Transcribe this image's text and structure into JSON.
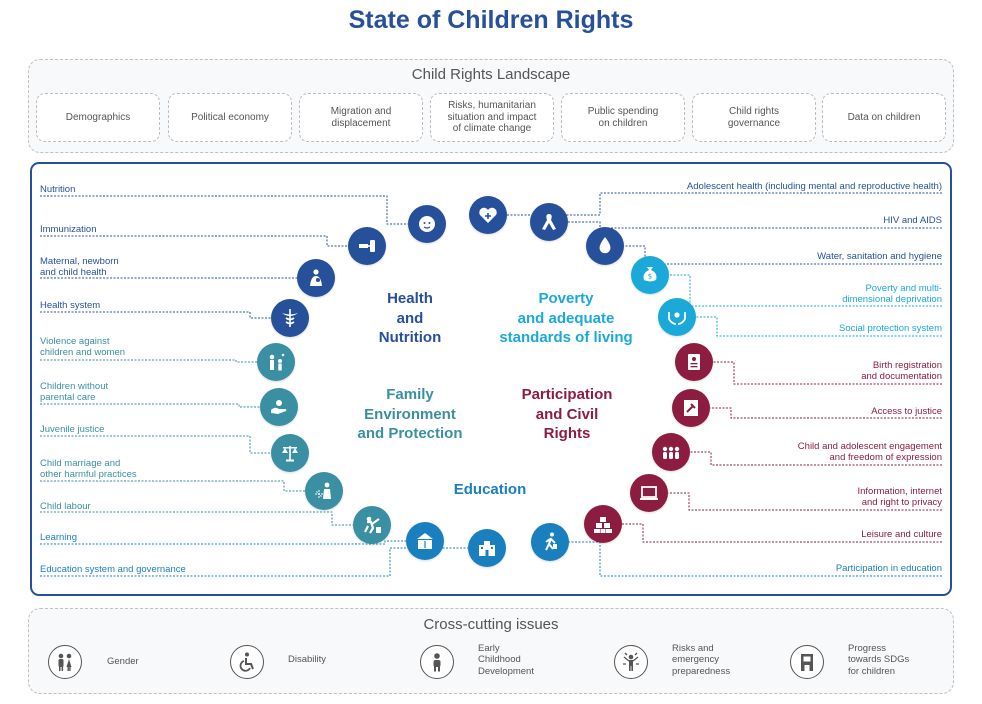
{
  "title": "State of Children Rights",
  "colors": {
    "health": "#27509b",
    "poverty": "#1aa9d8",
    "participation": "#8c1d40",
    "family": "#3a8fa3",
    "education": "#1a7fbf"
  },
  "landscape": {
    "title": "Child Rights Landscape",
    "items": [
      "Demographics",
      "Political economy",
      "Migration and\ndisplacement",
      "Risks, humanitarian\nsituation and impact\nof climate change",
      "Public spending\non children",
      "Child rights\ngovernance",
      "Data on children"
    ]
  },
  "sections": {
    "health": "Health\nand\nNutrition",
    "poverty": "Poverty\nand adequate\nstandards of living",
    "family": "Family\nEnvironment\nand Protection",
    "participation": "Participation\nand Civil\nRights",
    "education": "Education"
  },
  "left_labels": [
    "Nutrition",
    "Immunization",
    "Maternal, newborn\nand child health",
    "Health system",
    "Violence against\nchildren and women",
    "Children without\nparental care",
    "Juvenile justice",
    "Child marriage and\nother harmful practices",
    "Child labour",
    "Learning",
    "Education system and governance"
  ],
  "right_labels": [
    "Adolescent health (including mental and reproductive health)",
    "HIV and AIDS",
    "Water, sanitation and hygiene",
    "Poverty and multi-\ndimensional deprivation",
    "Social protection system",
    "Birth registration\nand documentation",
    "Access to justice",
    "Child and adolescent engagement\nand freedom of expression",
    "Information, internet\nand right to privacy",
    "Leisure and culture",
    "Participation in education"
  ],
  "left_icons": [
    "baby-face-icon",
    "syringe-icon",
    "mother-child-icon",
    "caduceus-icon",
    "violence-icon",
    "caring-hands-icon",
    "scales-icon",
    "harmful-practice-icon",
    "child-labour-icon",
    "learning-book-icon",
    "school-building-icon"
  ],
  "right_icons": [
    "heart-plus-icon",
    "ribbon-icon",
    "water-drop-icon",
    "money-bag-icon",
    "protection-hands-icon",
    "birth-certificate-icon",
    "justice-document-icon",
    "group-people-icon",
    "laptop-icon",
    "blocks-icon",
    "child-walking-icon"
  ],
  "cross_cutting": {
    "title": "Cross-cutting issues",
    "items": [
      {
        "label": "Gender",
        "icon": "gender-icon"
      },
      {
        "label": "Disability",
        "icon": "wheelchair-icon"
      },
      {
        "label": "Early\nChildhood\nDevelopment",
        "icon": "early-childhood-icon"
      },
      {
        "label": "Risks and\nemergency\npreparedness",
        "icon": "emergency-icon"
      },
      {
        "label": "Progress\ntowards SDGs\nfor children",
        "icon": "sdg-icon"
      }
    ]
  }
}
